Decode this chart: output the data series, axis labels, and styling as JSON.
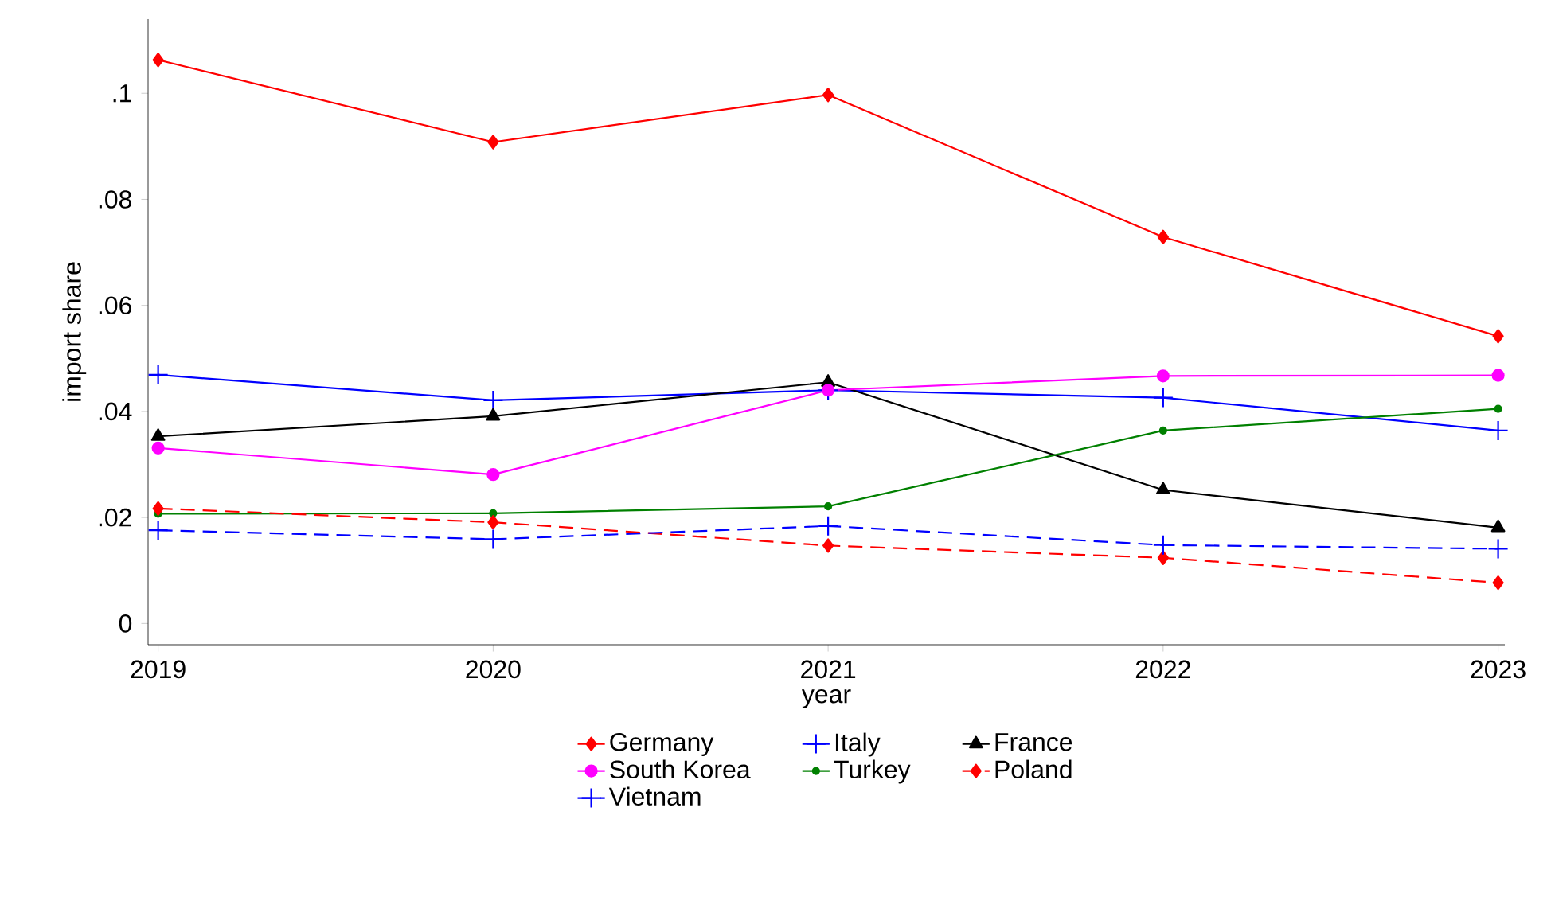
{
  "chart_data": {
    "type": "line",
    "xlabel": "year",
    "ylabel": "import share",
    "x": [
      2019,
      2020,
      2021,
      2022,
      2023
    ],
    "xlim": [
      2018.97,
      2023.02
    ],
    "xticks": [
      2019,
      2020,
      2021,
      2022,
      2023
    ],
    "ylim": [
      -0.004,
      0.114
    ],
    "yticks": [
      {
        "value": 0,
        "label": "0"
      },
      {
        "value": 0.02,
        "label": ".02"
      },
      {
        "value": 0.04,
        "label": ".04"
      },
      {
        "value": 0.06,
        "label": ".06"
      },
      {
        "value": 0.08,
        "label": ".08"
      },
      {
        "value": 0.1,
        "label": ".1"
      }
    ],
    "grid": false,
    "legend": "bottom",
    "series": [
      {
        "name": "Germany",
        "color": "#ff0000",
        "marker": "diamond",
        "line_style": "solid",
        "values": [
          0.1063,
          0.0908,
          0.0997,
          0.0729,
          0.0542
        ]
      },
      {
        "name": "Italy",
        "color": "#0000ff",
        "marker": "cross",
        "line_style": "solid",
        "values": [
          0.0469,
          0.0421,
          0.044,
          0.0426,
          0.0364
        ]
      },
      {
        "name": "France",
        "color": "#000000",
        "marker": "triangle",
        "line_style": "solid",
        "values": [
          0.0353,
          0.0391,
          0.0455,
          0.0252,
          0.0181
        ]
      },
      {
        "name": "South Korea",
        "color": "#ff00ff",
        "marker": "circle",
        "line_style": "solid",
        "values": [
          0.0331,
          0.0281,
          0.044,
          0.0467,
          0.0468
        ]
      },
      {
        "name": "Turkey",
        "color": "#008000",
        "marker": "circle",
        "line_style": "solid",
        "values": [
          0.0207,
          0.0208,
          0.0221,
          0.0364,
          0.0405
        ]
      },
      {
        "name": "Poland",
        "color": "#ff0000",
        "marker": "diamond",
        "line_style": "dashed",
        "values": [
          0.0217,
          0.0191,
          0.0147,
          0.0124,
          0.0077
        ]
      },
      {
        "name": "Vietnam",
        "color": "#0000ff",
        "marker": "cross",
        "line_style": "dashed",
        "values": [
          0.0176,
          0.0159,
          0.0184,
          0.0148,
          0.0141
        ]
      }
    ]
  }
}
